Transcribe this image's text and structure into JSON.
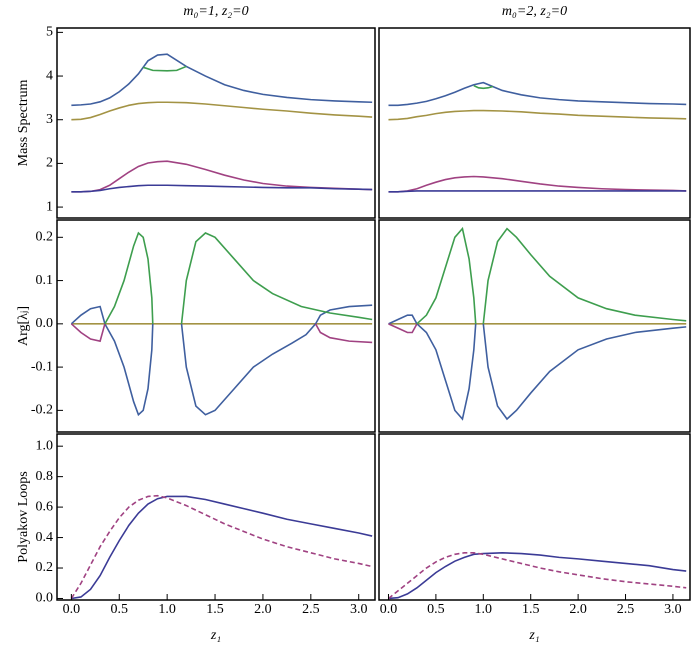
{
  "chart_data": [
    {
      "type": "line",
      "title": "m₀=1, z₂=0",
      "ylabel": "Mass Spectrum",
      "xlim": [
        -0.15,
        3.17
      ],
      "ylim": [
        0.75,
        5.1
      ],
      "yticks": [
        1,
        2,
        3,
        4,
        5
      ],
      "x": [
        0,
        0.1,
        0.2,
        0.3,
        0.4,
        0.5,
        0.6,
        0.7,
        0.8,
        0.9,
        1.0,
        1.2,
        1.4,
        1.6,
        1.8,
        2.0,
        2.25,
        2.5,
        2.75,
        3.0,
        3.14
      ],
      "series": [
        {
          "color": "#3f5f9f",
          "values": [
            3.33,
            3.34,
            3.36,
            3.41,
            3.5,
            3.64,
            3.82,
            4.05,
            4.35,
            4.48,
            4.5,
            4.22,
            4.0,
            3.8,
            3.67,
            3.58,
            3.51,
            3.46,
            3.43,
            3.41,
            3.4
          ]
        },
        {
          "color": "#3e9e4e",
          "x": [
            0.75,
            0.85,
            1.0,
            1.1,
            1.2
          ],
          "values": [
            4.2,
            4.13,
            4.12,
            4.13,
            4.22
          ]
        },
        {
          "color": "#a39344",
          "values": [
            3.0,
            3.01,
            3.05,
            3.12,
            3.2,
            3.27,
            3.33,
            3.37,
            3.39,
            3.4,
            3.4,
            3.39,
            3.36,
            3.32,
            3.28,
            3.24,
            3.2,
            3.15,
            3.11,
            3.08,
            3.06
          ]
        },
        {
          "color": "#a04282",
          "values": [
            1.35,
            1.35,
            1.36,
            1.4,
            1.5,
            1.65,
            1.8,
            1.93,
            2.01,
            2.04,
            2.05,
            1.98,
            1.86,
            1.73,
            1.62,
            1.54,
            1.48,
            1.45,
            1.43,
            1.41,
            1.4
          ]
        },
        {
          "color": "#3b3b96",
          "values": [
            1.35,
            1.35,
            1.36,
            1.38,
            1.42,
            1.45,
            1.47,
            1.49,
            1.5,
            1.5,
            1.5,
            1.49,
            1.48,
            1.47,
            1.46,
            1.45,
            1.44,
            1.44,
            1.42,
            1.41,
            1.4
          ]
        }
      ]
    },
    {
      "type": "line",
      "title": "m₀=2, z₂=0",
      "xlim": [
        -0.1,
        3.18
      ],
      "ylim": [
        0.75,
        5.1
      ],
      "x": [
        0,
        0.1,
        0.2,
        0.3,
        0.4,
        0.5,
        0.6,
        0.7,
        0.8,
        0.9,
        1.0,
        1.2,
        1.4,
        1.6,
        1.8,
        2.0,
        2.25,
        2.5,
        2.75,
        3.0,
        3.14
      ],
      "series": [
        {
          "color": "#3f5f9f",
          "values": [
            3.33,
            3.33,
            3.35,
            3.38,
            3.42,
            3.48,
            3.55,
            3.63,
            3.72,
            3.8,
            3.85,
            3.67,
            3.57,
            3.5,
            3.46,
            3.43,
            3.41,
            3.39,
            3.37,
            3.36,
            3.35
          ]
        },
        {
          "color": "#3e9e4e",
          "x": [
            0.9,
            0.95,
            1.0,
            1.05,
            1.1
          ],
          "values": [
            3.78,
            3.73,
            3.72,
            3.73,
            3.76
          ]
        },
        {
          "color": "#a39344",
          "values": [
            3.0,
            3.01,
            3.03,
            3.07,
            3.1,
            3.14,
            3.17,
            3.19,
            3.2,
            3.21,
            3.21,
            3.2,
            3.18,
            3.15,
            3.13,
            3.1,
            3.08,
            3.06,
            3.04,
            3.03,
            3.02
          ]
        },
        {
          "color": "#a04282",
          "values": [
            1.35,
            1.35,
            1.37,
            1.42,
            1.5,
            1.57,
            1.63,
            1.67,
            1.69,
            1.7,
            1.69,
            1.65,
            1.59,
            1.53,
            1.48,
            1.45,
            1.42,
            1.4,
            1.39,
            1.38,
            1.37
          ]
        },
        {
          "color": "#3b3b96",
          "values": [
            1.35,
            1.35,
            1.36,
            1.37,
            1.37,
            1.37,
            1.37,
            1.37,
            1.37,
            1.37,
            1.37,
            1.37,
            1.37,
            1.37,
            1.37,
            1.37,
            1.37,
            1.37,
            1.37,
            1.37,
            1.37
          ]
        }
      ]
    },
    {
      "type": "line",
      "ylabel": "Arg[λⱼ]",
      "xlim": [
        -0.15,
        3.17
      ],
      "ylim": [
        -0.25,
        0.24
      ],
      "yticks": [
        -0.2,
        -0.1,
        {
          "value": 0,
          "label": "0.0"
        },
        0.1,
        0.2
      ],
      "series": [
        {
          "color": "#a39344",
          "x": [
            0,
            3.14
          ],
          "values": [
            0,
            0
          ]
        },
        {
          "color": "#3f5f9f",
          "x": [
            0,
            0.1,
            0.2,
            0.3,
            0.35,
            null,
            0.35,
            0.45,
            0.55,
            0.65,
            0.7,
            0.75,
            0.8,
            0.84,
            0.85,
            null,
            1.15,
            1.2,
            1.3,
            1.4,
            1.5,
            1.7,
            1.9,
            2.1,
            2.3,
            2.45,
            2.55,
            2.6,
            2.7,
            2.9,
            3.14
          ],
          "values": [
            0,
            0.02,
            0.035,
            0.04,
            0,
            null,
            0,
            -0.04,
            -0.1,
            -0.18,
            -0.21,
            -0.2,
            -0.15,
            -0.06,
            0,
            null,
            0,
            -0.1,
            -0.19,
            -0.21,
            -0.2,
            -0.15,
            -0.1,
            -0.07,
            -0.045,
            -0.025,
            0,
            0.02,
            0.032,
            0.04,
            0.043
          ]
        },
        {
          "color": "#a04282",
          "x": [
            0,
            0.1,
            0.2,
            0.3,
            0.35,
            null,
            2.55,
            2.6,
            2.7,
            2.9,
            3.14
          ],
          "values": [
            0,
            -0.02,
            -0.035,
            -0.04,
            0,
            null,
            0,
            -0.02,
            -0.032,
            -0.04,
            -0.043
          ]
        },
        {
          "color": "#3e9e4e",
          "x": [
            0.35,
            0.45,
            0.55,
            0.65,
            0.7,
            0.75,
            0.8,
            0.84,
            0.85,
            null,
            1.15,
            1.2,
            1.3,
            1.4,
            1.5,
            1.7,
            1.9,
            2.1,
            2.4,
            2.7,
            3.0,
            3.14
          ],
          "values": [
            0,
            0.04,
            0.1,
            0.18,
            0.21,
            0.2,
            0.15,
            0.06,
            0,
            null,
            0,
            0.1,
            0.19,
            0.21,
            0.2,
            0.15,
            0.1,
            0.07,
            0.04,
            0.025,
            0.015,
            0.01
          ]
        }
      ]
    },
    {
      "type": "line",
      "xlim": [
        -0.1,
        3.18
      ],
      "ylim": [
        -0.25,
        0.24
      ],
      "series": [
        {
          "color": "#a39344",
          "x": [
            0,
            3.14
          ],
          "values": [
            0,
            0
          ]
        },
        {
          "color": "#3f5f9f",
          "x": [
            0,
            0.1,
            0.2,
            0.25,
            0.3,
            null,
            0.3,
            0.4,
            0.5,
            0.6,
            0.7,
            0.78,
            0.85,
            0.9,
            0.92,
            null,
            1.0,
            1.05,
            1.15,
            1.25,
            1.35,
            1.5,
            1.7,
            2.0,
            2.3,
            2.6,
            3.0,
            3.14
          ],
          "values": [
            0,
            0.01,
            0.02,
            0.02,
            0,
            null,
            0,
            -0.02,
            -0.06,
            -0.13,
            -0.2,
            -0.22,
            -0.15,
            -0.06,
            0,
            null,
            0,
            -0.1,
            -0.19,
            -0.22,
            -0.2,
            -0.16,
            -0.11,
            -0.06,
            -0.035,
            -0.02,
            -0.01,
            -0.007
          ]
        },
        {
          "color": "#a04282",
          "x": [
            0,
            0.1,
            0.2,
            0.25,
            0.3
          ],
          "values": [
            0,
            -0.01,
            -0.02,
            -0.02,
            0
          ]
        },
        {
          "color": "#3e9e4e",
          "x": [
            0.3,
            0.4,
            0.5,
            0.6,
            0.7,
            0.78,
            0.85,
            0.9,
            0.92,
            null,
            1.0,
            1.05,
            1.15,
            1.25,
            1.35,
            1.5,
            1.7,
            2.0,
            2.3,
            2.6,
            3.0,
            3.14
          ],
          "values": [
            0,
            0.02,
            0.06,
            0.13,
            0.2,
            0.22,
            0.15,
            0.06,
            0,
            null,
            0,
            0.1,
            0.19,
            0.22,
            0.2,
            0.16,
            0.11,
            0.06,
            0.035,
            0.02,
            0.01,
            0.007
          ]
        }
      ]
    },
    {
      "type": "line",
      "ylabel": "Polyakov Loops",
      "xlabel": "z₁",
      "xlim": [
        -0.15,
        3.17
      ],
      "ylim": [
        -0.01,
        1.08
      ],
      "xticks": [
        {
          "value": 0,
          "label": "0.0"
        },
        0.5,
        {
          "value": 1,
          "label": "1.0"
        },
        1.5,
        {
          "value": 2,
          "label": "2.0"
        },
        2.5,
        {
          "value": 3,
          "label": "3.0"
        }
      ],
      "yticks": [
        {
          "value": 0,
          "label": "0.0"
        },
        0.2,
        0.4,
        0.6,
        0.8,
        {
          "value": 1,
          "label": "1.0"
        }
      ],
      "x": [
        0,
        0.1,
        0.2,
        0.3,
        0.4,
        0.5,
        0.6,
        0.7,
        0.8,
        0.9,
        1.0,
        1.2,
        1.4,
        1.6,
        1.8,
        2.0,
        2.25,
        2.5,
        2.75,
        3.0,
        3.14
      ],
      "series": [
        {
          "color": "#3b3b96",
          "values": [
            0,
            0.01,
            0.06,
            0.15,
            0.27,
            0.38,
            0.48,
            0.56,
            0.62,
            0.655,
            0.67,
            0.67,
            0.65,
            0.62,
            0.59,
            0.56,
            0.52,
            0.49,
            0.46,
            0.43,
            0.41
          ]
        },
        {
          "color": "#a04282",
          "dashed": true,
          "values": [
            0,
            0.1,
            0.22,
            0.34,
            0.44,
            0.53,
            0.6,
            0.645,
            0.67,
            0.675,
            0.66,
            0.61,
            0.55,
            0.49,
            0.44,
            0.39,
            0.34,
            0.3,
            0.26,
            0.23,
            0.21
          ]
        }
      ]
    },
    {
      "type": "line",
      "xlabel": "z₁",
      "xlim": [
        -0.1,
        3.18
      ],
      "ylim": [
        -0.01,
        1.08
      ],
      "xticks": [
        {
          "value": 0,
          "label": "0.0"
        },
        0.5,
        {
          "value": 1,
          "label": "1.0"
        },
        1.5,
        {
          "value": 2,
          "label": "2.0"
        },
        2.5,
        {
          "value": 3,
          "label": "3.0"
        }
      ],
      "x": [
        0,
        0.1,
        0.2,
        0.3,
        0.4,
        0.5,
        0.6,
        0.7,
        0.8,
        0.9,
        1.0,
        1.2,
        1.4,
        1.6,
        1.8,
        2.0,
        2.25,
        2.5,
        2.75,
        3.0,
        3.14
      ],
      "series": [
        {
          "color": "#3b3b96",
          "values": [
            0,
            0.005,
            0.03,
            0.07,
            0.12,
            0.17,
            0.21,
            0.245,
            0.27,
            0.29,
            0.295,
            0.3,
            0.295,
            0.285,
            0.27,
            0.26,
            0.245,
            0.23,
            0.215,
            0.19,
            0.18
          ]
        },
        {
          "color": "#a04282",
          "dashed": true,
          "values": [
            0,
            0.05,
            0.1,
            0.15,
            0.2,
            0.24,
            0.27,
            0.29,
            0.3,
            0.3,
            0.29,
            0.26,
            0.23,
            0.2,
            0.175,
            0.155,
            0.13,
            0.11,
            0.095,
            0.08,
            0.07
          ]
        }
      ]
    }
  ]
}
